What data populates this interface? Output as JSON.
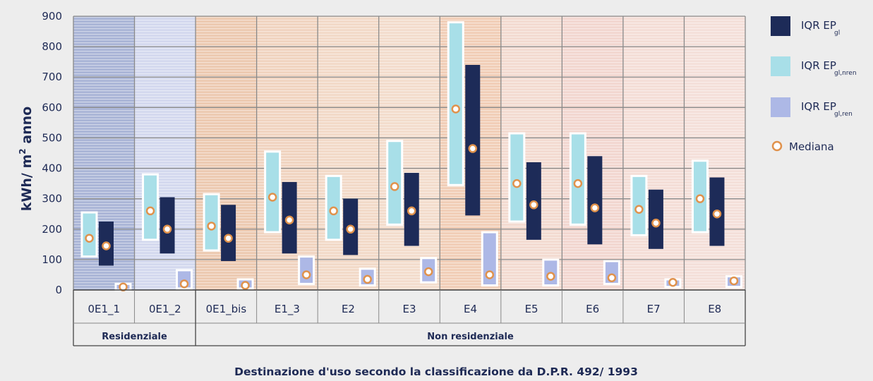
{
  "chart_data": {
    "type": "box-range",
    "ylabel_main": "kWh/ m",
    "ylabel_sup": "2",
    "ylabel_tail": " anno",
    "xlabel": "Destinazione d'uso secondo la classificazione da D.P.R. 492/ 1993",
    "ylim": [
      0,
      900
    ],
    "yticks": [
      0,
      100,
      200,
      300,
      400,
      500,
      600,
      700,
      800,
      900
    ],
    "categories": [
      "0E1_1",
      "0E1_2",
      "0E1_bis",
      "E1_3",
      "E2",
      "E3",
      "E4",
      "E5",
      "E6",
      "E7",
      "E8"
    ],
    "groups": [
      {
        "label": "Residenziale",
        "categories": [
          "0E1_1",
          "0E1_2"
        ]
      },
      {
        "label": "Non residenziale",
        "categories": [
          "0E1_bis",
          "E1_3",
          "E2",
          "E3",
          "E4",
          "E5",
          "E6",
          "E7",
          "E8"
        ]
      }
    ],
    "series": [
      {
        "name": "IQR EP",
        "sub": "gl",
        "color": "#1d2b58",
        "low": [
          80,
          120,
          95,
          120,
          115,
          145,
          245,
          165,
          150,
          135,
          145
        ],
        "high": [
          225,
          305,
          280,
          355,
          300,
          385,
          740,
          420,
          440,
          330,
          370
        ],
        "median": [
          145,
          200,
          170,
          230,
          200,
          260,
          465,
          280,
          270,
          220,
          250
        ]
      },
      {
        "name": "IQR EP",
        "sub": "gl,nren",
        "color": "#a8dfe8",
        "low": [
          110,
          165,
          130,
          190,
          165,
          215,
          345,
          225,
          215,
          180,
          190
        ],
        "high": [
          255,
          380,
          315,
          455,
          375,
          490,
          880,
          515,
          515,
          375,
          425
        ],
        "median": [
          170,
          260,
          210,
          305,
          260,
          340,
          595,
          350,
          350,
          265,
          300
        ]
      },
      {
        "name": "IQR EP",
        "sub": "gl,ren",
        "color": "#adb8e6",
        "low": [
          0,
          5,
          5,
          20,
          15,
          25,
          15,
          15,
          20,
          10,
          10
        ],
        "high": [
          20,
          65,
          35,
          110,
          70,
          105,
          190,
          100,
          95,
          35,
          45
        ],
        "median": [
          10,
          20,
          15,
          50,
          35,
          60,
          50,
          45,
          40,
          25,
          30
        ]
      }
    ],
    "median_label": "Mediana"
  }
}
